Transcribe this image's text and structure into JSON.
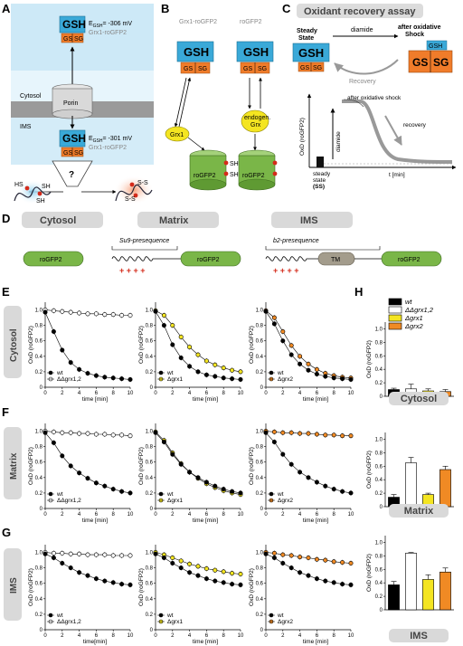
{
  "panels": {
    "A": "A",
    "B": "B",
    "C": "C",
    "D": "D",
    "E": "E",
    "F": "F",
    "G": "G",
    "H": "H"
  },
  "panelA": {
    "cytosol": "Cytosol",
    "ims": "IMS",
    "porin": "Porin",
    "gsh": "GSH",
    "gs": "GS",
    "sg": "SG",
    "egsh_top": "E",
    "egsh_top_sub": "GSH",
    "egsh_top_val": "= -306 mV",
    "egsh_bottom_val": "= -301 mV",
    "sensor": "Grx1-roGFP2",
    "question": "?",
    "hs": "HS",
    "sh": "SH",
    "ss": "S-S"
  },
  "panelB": {
    "grx1_rogfp2": "Grx1-roGFP2",
    "rogfp2": "roGFP2",
    "gsh": "GSH",
    "gs": "GS",
    "sg": "SG",
    "grx1": "Grx1",
    "endogen": "endogen.",
    "grx": "Grx",
    "sh": "SH",
    "roGFP2_label": "roGFP2"
  },
  "panelC": {
    "title": "Oxidant recovery assay",
    "steady": "Steady",
    "state": "State",
    "diamide": "diamide",
    "after": "after oxidative",
    "shock": "Shock",
    "recovery": "Recovery",
    "gsh": "GSH",
    "gs": "GS",
    "sg": "SG",
    "plot_after": "after oxidative shock",
    "plot_recovery": "recovery",
    "plot_diamide": "diamide",
    "ylabel": "OxD (roGFP2)",
    "xlabel": "t [min]",
    "ss1": "steady",
    "ss2": "state",
    "ss3": "(SS)"
  },
  "panelD": {
    "cytosol": "Cytosol",
    "matrix": "Matrix",
    "ims": "IMS",
    "su9": "Su9-presequence",
    "b2": "b2-presequence",
    "rogfp2": "roGFP2",
    "tm": "TM",
    "plus": "+ + + +"
  },
  "rows": {
    "E": "Cytosol",
    "F": "Matrix",
    "G": "IMS"
  },
  "legend": {
    "wt": "wt",
    "dd": "ΔΔgrx1,2",
    "g1": "Δgrx1",
    "g2": "Δgrx2"
  },
  "axes": {
    "ylabel": "OxD (roGFP2)",
    "xlabel": "time [min]",
    "xlabel_alt": "time[min]",
    "yticks": [
      "0",
      "0.2",
      "0.4",
      "0.6",
      "0.8",
      "1.0"
    ],
    "xticks": [
      "0",
      "2",
      "4",
      "6",
      "8",
      "10"
    ]
  },
  "colors": {
    "gsh_blue": "#3aa9d8",
    "gssg_orange": "#f07c2a",
    "rogfp_green": "#7ab648",
    "yellow": "#f4e521",
    "orange": "#f08a24",
    "wt": "#000000",
    "white": "#ffffff",
    "membrane_gray": "#a9a9a9",
    "cyan_bg": "#bfe6f6"
  },
  "chart_data": [
    {
      "type": "line",
      "panel": "E1",
      "xlabel": "time [min]",
      "ylabel": "OxD (roGFP2)",
      "xlim": [
        0,
        10
      ],
      "ylim": [
        0,
        1.1
      ],
      "series": [
        {
          "name": "wt",
          "x": [
            0,
            1,
            2,
            3,
            4,
            5,
            6,
            7,
            8,
            9,
            10
          ],
          "y": [
            0.97,
            0.72,
            0.48,
            0.32,
            0.23,
            0.18,
            0.15,
            0.13,
            0.12,
            0.11,
            0.1
          ]
        },
        {
          "name": "ΔΔgrx1,2",
          "x": [
            0,
            1,
            2,
            3,
            4,
            5,
            6,
            7,
            8,
            9,
            10
          ],
          "y": [
            1.0,
            0.99,
            0.98,
            0.97,
            0.96,
            0.95,
            0.95,
            0.94,
            0.94,
            0.93,
            0.93
          ]
        }
      ]
    },
    {
      "type": "line",
      "panel": "E2",
      "xlabel": "time [min]",
      "ylabel": "OxD (roGFP2)",
      "xlim": [
        0,
        10
      ],
      "ylim": [
        0,
        1.1
      ],
      "series": [
        {
          "name": "wt",
          "x": [
            0,
            1,
            2,
            3,
            4,
            5,
            6,
            7,
            8,
            9,
            10
          ],
          "y": [
            0.98,
            0.8,
            0.55,
            0.38,
            0.27,
            0.2,
            0.16,
            0.14,
            0.12,
            0.11,
            0.1
          ]
        },
        {
          "name": "Δgrx1",
          "x": [
            0,
            1,
            2,
            3,
            4,
            5,
            6,
            7,
            8,
            9,
            10
          ],
          "y": [
            0.99,
            0.93,
            0.8,
            0.65,
            0.52,
            0.42,
            0.34,
            0.29,
            0.25,
            0.22,
            0.2
          ]
        }
      ]
    },
    {
      "type": "line",
      "panel": "E3",
      "xlabel": "time [min]",
      "ylabel": "OxD (roGFP2)",
      "xlim": [
        0,
        10
      ],
      "ylim": [
        0,
        1.1
      ],
      "series": [
        {
          "name": "wt",
          "x": [
            0,
            1,
            2,
            3,
            4,
            5,
            6,
            7,
            8,
            9,
            10
          ],
          "y": [
            0.98,
            0.82,
            0.6,
            0.42,
            0.3,
            0.22,
            0.17,
            0.14,
            0.12,
            0.11,
            0.1
          ]
        },
        {
          "name": "Δgrx2",
          "x": [
            0,
            1,
            2,
            3,
            4,
            5,
            6,
            7,
            8,
            9,
            10
          ],
          "y": [
            0.99,
            0.9,
            0.72,
            0.54,
            0.4,
            0.3,
            0.23,
            0.18,
            0.15,
            0.13,
            0.12
          ]
        }
      ]
    },
    {
      "type": "line",
      "panel": "F1",
      "xlabel": "time [min]",
      "ylabel": "OxD (roGFP2)",
      "xlim": [
        0,
        10
      ],
      "ylim": [
        0,
        1.1
      ],
      "series": [
        {
          "name": "wt",
          "x": [
            0,
            1,
            2,
            3,
            4,
            5,
            6,
            7,
            8,
            9,
            10
          ],
          "y": [
            0.98,
            0.85,
            0.68,
            0.55,
            0.46,
            0.39,
            0.33,
            0.29,
            0.25,
            0.22,
            0.2
          ]
        },
        {
          "name": "ΔΔgrx1,2",
          "x": [
            0,
            1,
            2,
            3,
            4,
            5,
            6,
            7,
            8,
            9,
            10
          ],
          "y": [
            1.0,
            0.99,
            0.98,
            0.98,
            0.97,
            0.97,
            0.96,
            0.96,
            0.95,
            0.95,
            0.94
          ]
        }
      ]
    },
    {
      "type": "line",
      "panel": "F2",
      "xlabel": "time [min]",
      "ylabel": "OxD (roGFP2)",
      "xlim": [
        0,
        10
      ],
      "ylim": [
        0,
        1.1
      ],
      "series": [
        {
          "name": "wt",
          "x": [
            0,
            1,
            2,
            3,
            4,
            5,
            6,
            7,
            8,
            9,
            10
          ],
          "y": [
            0.98,
            0.86,
            0.7,
            0.57,
            0.47,
            0.4,
            0.34,
            0.29,
            0.25,
            0.22,
            0.2
          ]
        },
        {
          "name": "Δgrx1",
          "x": [
            0,
            1,
            2,
            3,
            4,
            5,
            6,
            7,
            8,
            9,
            10
          ],
          "y": [
            0.99,
            0.88,
            0.72,
            0.58,
            0.47,
            0.39,
            0.32,
            0.27,
            0.23,
            0.2,
            0.18
          ]
        }
      ]
    },
    {
      "type": "line",
      "panel": "F3",
      "xlabel": "time [min]",
      "ylabel": "OxD (roGFP2)",
      "xlim": [
        0,
        10
      ],
      "ylim": [
        0,
        1.1
      ],
      "series": [
        {
          "name": "wt",
          "x": [
            0,
            1,
            2,
            3,
            4,
            5,
            6,
            7,
            8,
            9,
            10
          ],
          "y": [
            0.98,
            0.86,
            0.7,
            0.57,
            0.47,
            0.4,
            0.34,
            0.29,
            0.25,
            0.22,
            0.2
          ]
        },
        {
          "name": "Δgrx2",
          "x": [
            0,
            1,
            2,
            3,
            4,
            5,
            6,
            7,
            8,
            9,
            10
          ],
          "y": [
            1.0,
            0.99,
            0.98,
            0.98,
            0.97,
            0.97,
            0.96,
            0.95,
            0.95,
            0.94,
            0.94
          ]
        }
      ]
    },
    {
      "type": "line",
      "panel": "G1",
      "xlabel": "time[min]",
      "ylabel": "OxD (roGFP2)",
      "xlim": [
        0,
        10
      ],
      "ylim": [
        0,
        1.1
      ],
      "series": [
        {
          "name": "wt",
          "x": [
            0,
            1,
            2,
            3,
            4,
            5,
            6,
            7,
            8,
            9,
            10
          ],
          "y": [
            0.98,
            0.93,
            0.86,
            0.8,
            0.74,
            0.7,
            0.66,
            0.63,
            0.61,
            0.59,
            0.58
          ]
        },
        {
          "name": "ΔΔgrx1,2",
          "x": [
            0,
            1,
            2,
            3,
            4,
            5,
            6,
            7,
            8,
            9,
            10
          ],
          "y": [
            1.0,
            0.99,
            0.99,
            0.98,
            0.98,
            0.97,
            0.97,
            0.97,
            0.96,
            0.96,
            0.96
          ]
        }
      ]
    },
    {
      "type": "line",
      "panel": "G2",
      "xlabel": "time [min]",
      "ylabel": "OxD (roGFP2)",
      "xlim": [
        0,
        10
      ],
      "ylim": [
        0,
        1.1
      ],
      "series": [
        {
          "name": "wt",
          "x": [
            0,
            1,
            2,
            3,
            4,
            5,
            6,
            7,
            8,
            9,
            10
          ],
          "y": [
            0.98,
            0.93,
            0.86,
            0.8,
            0.74,
            0.7,
            0.66,
            0.63,
            0.61,
            0.59,
            0.58
          ]
        },
        {
          "name": "Δgrx1",
          "x": [
            0,
            1,
            2,
            3,
            4,
            5,
            6,
            7,
            8,
            9,
            10
          ],
          "y": [
            1.0,
            0.97,
            0.93,
            0.89,
            0.85,
            0.82,
            0.79,
            0.77,
            0.75,
            0.73,
            0.72
          ]
        }
      ]
    },
    {
      "type": "line",
      "panel": "G3",
      "xlabel": "time [min]",
      "ylabel": "OxD (roGFP2)",
      "xlim": [
        0,
        10
      ],
      "ylim": [
        0,
        1.1
      ],
      "series": [
        {
          "name": "wt",
          "x": [
            0,
            1,
            2,
            3,
            4,
            5,
            6,
            7,
            8,
            9,
            10
          ],
          "y": [
            0.98,
            0.93,
            0.86,
            0.8,
            0.74,
            0.7,
            0.66,
            0.63,
            0.61,
            0.59,
            0.58
          ]
        },
        {
          "name": "Δgrx2",
          "x": [
            0,
            1,
            2,
            3,
            4,
            5,
            6,
            7,
            8,
            9,
            10
          ],
          "y": [
            1.0,
            0.99,
            0.97,
            0.96,
            0.94,
            0.93,
            0.91,
            0.9,
            0.88,
            0.87,
            0.86
          ]
        }
      ]
    },
    {
      "type": "bar",
      "panel": "H-cytosol",
      "title": "Cytosol",
      "ylabel": "OxD (roGFP2)",
      "ylim": [
        0,
        1.1
      ],
      "categories": [
        "wt",
        "ΔΔgrx1,2",
        "Δgrx1",
        "Δgrx2"
      ],
      "values": [
        0.1,
        0.11,
        0.08,
        0.07
      ],
      "errors": [
        0.02,
        0.07,
        0.03,
        0.03
      ]
    },
    {
      "type": "bar",
      "panel": "H-matrix",
      "title": "Matrix",
      "ylabel": "OxD (roGFP2)",
      "ylim": [
        0,
        1.1
      ],
      "categories": [
        "wt",
        "ΔΔgrx1,2",
        "Δgrx1",
        "Δgrx2"
      ],
      "values": [
        0.14,
        0.65,
        0.18,
        0.55
      ],
      "errors": [
        0.04,
        0.08,
        0.02,
        0.05
      ]
    },
    {
      "type": "bar",
      "panel": "H-ims",
      "title": "IMS",
      "ylabel": "OxD (roGFP2)",
      "ylim": [
        0,
        1.1
      ],
      "categories": [
        "wt",
        "ΔΔgrx1,2",
        "Δgrx1",
        "Δgrx2"
      ],
      "values": [
        0.37,
        0.84,
        0.45,
        0.56
      ],
      "errors": [
        0.05,
        0.01,
        0.07,
        0.06
      ]
    }
  ]
}
